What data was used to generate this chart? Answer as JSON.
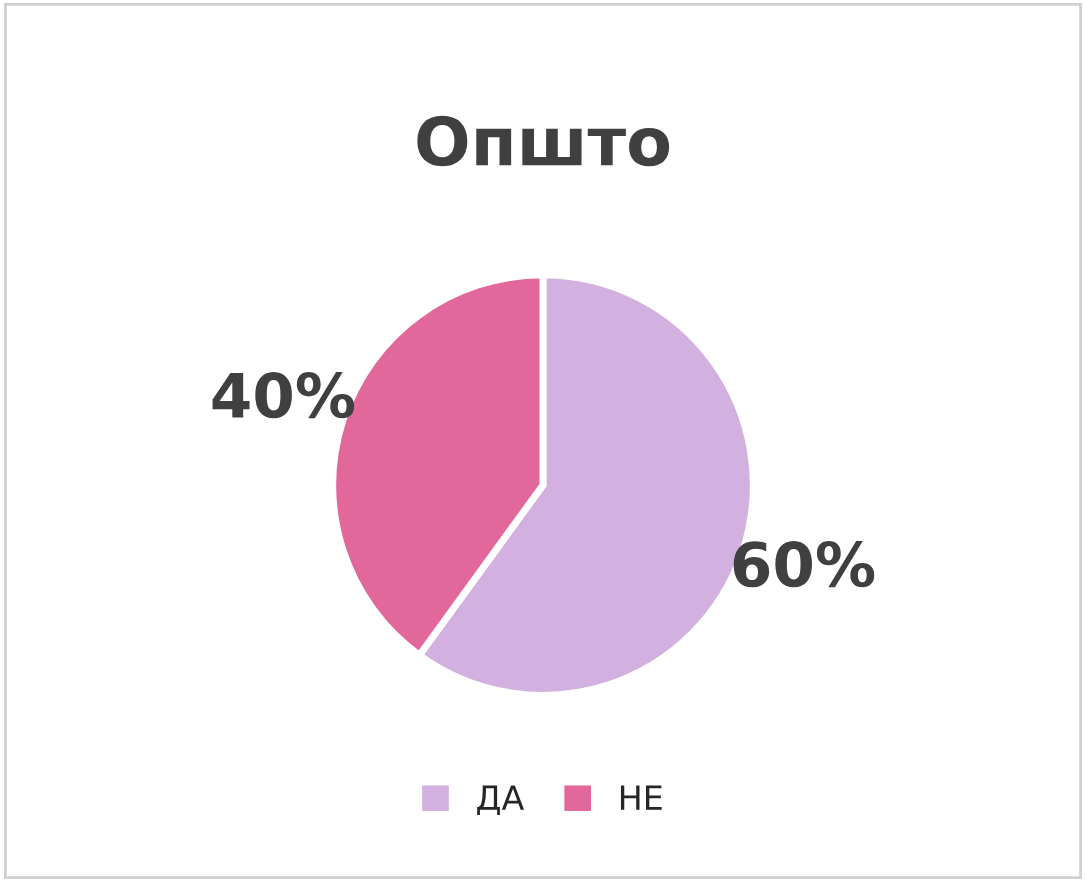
{
  "chart_data": {
    "type": "pie",
    "title": "Општо",
    "categories": [
      "ДА",
      "НЕ"
    ],
    "values": [
      60,
      40
    ],
    "colors": [
      "#d2b1e0",
      "#e2679a"
    ],
    "value_labels": [
      "60%",
      "40%"
    ],
    "legend": "bottom"
  }
}
